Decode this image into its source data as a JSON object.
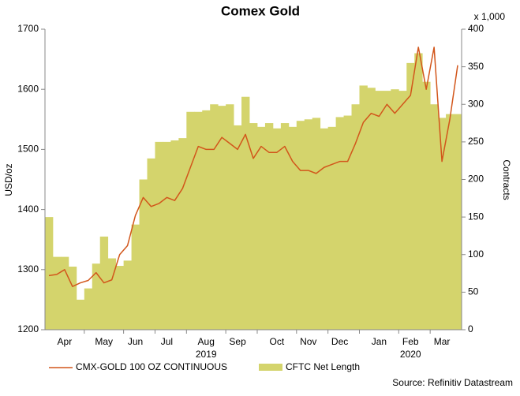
{
  "chart_data": {
    "type": "combo",
    "title": "Comex Gold",
    "y_label": "USD/oz",
    "y2_label": "Contracts",
    "y2_unit": "x 1,000",
    "source": "Source: Refinitiv Datastream",
    "categories": [
      null,
      null,
      "Apr",
      null,
      null,
      null,
      null,
      "May",
      null,
      null,
      null,
      "Jun",
      null,
      null,
      null,
      "Jul",
      null,
      null,
      null,
      null,
      "Aug",
      null,
      null,
      null,
      "Sep",
      null,
      null,
      null,
      null,
      "Oct",
      null,
      null,
      null,
      "Nov",
      null,
      null,
      null,
      "Dec",
      null,
      null,
      null,
      null,
      "Jan",
      null,
      null,
      null,
      "Feb",
      null,
      null,
      null,
      "Mar",
      null,
      null
    ],
    "category_years": [
      null,
      null,
      null,
      null,
      null,
      null,
      null,
      null,
      null,
      null,
      null,
      null,
      null,
      null,
      null,
      null,
      null,
      null,
      null,
      null,
      "2019",
      null,
      null,
      null,
      null,
      null,
      null,
      null,
      null,
      null,
      null,
      null,
      null,
      null,
      null,
      null,
      null,
      null,
      null,
      null,
      null,
      null,
      null,
      null,
      null,
      null,
      "2020",
      null,
      null,
      null,
      null,
      null,
      null
    ],
    "series": [
      {
        "name": "CFTC Net Length",
        "type": "area",
        "axis": "y2",
        "color": "#d4d46c",
        "values": [
          150,
          97,
          97,
          84,
          40,
          55,
          88,
          124,
          95,
          85,
          92,
          140,
          200,
          228,
          250,
          250,
          252,
          255,
          290,
          290,
          292,
          300,
          298,
          300,
          272,
          310,
          275,
          270,
          275,
          268,
          275,
          270,
          278,
          280,
          282,
          268,
          270,
          283,
          285,
          300,
          325,
          322,
          318,
          318,
          320,
          318,
          355,
          368,
          330,
          300,
          282,
          287,
          287
        ]
      },
      {
        "name": "CMX-GOLD 100 OZ CONTINUOUS",
        "type": "line",
        "color": "#d2561b",
        "values": [
          1290,
          1292,
          1300,
          1272,
          1278,
          1282,
          1295,
          1278,
          1283,
          1325,
          1340,
          1390,
          1420,
          1405,
          1410,
          1420,
          1415,
          1435,
          1470,
          1505,
          1500,
          1500,
          1520,
          1510,
          1500,
          1525,
          1485,
          1505,
          1495,
          1495,
          1505,
          1480,
          1465,
          1465,
          1460,
          1470,
          1475,
          1480,
          1480,
          1510,
          1545,
          1560,
          1555,
          1575,
          1560,
          1575,
          1590,
          1670,
          1600,
          1670,
          1480,
          1550,
          1640
        ]
      }
    ],
    "ylim": [
      1200,
      1700
    ],
    "yticks": [
      1200,
      1300,
      1400,
      1500,
      1600,
      1700
    ],
    "y2lim": [
      0,
      400
    ],
    "y2ticks": [
      0,
      50,
      100,
      150,
      200,
      250,
      300,
      350,
      400
    ]
  }
}
